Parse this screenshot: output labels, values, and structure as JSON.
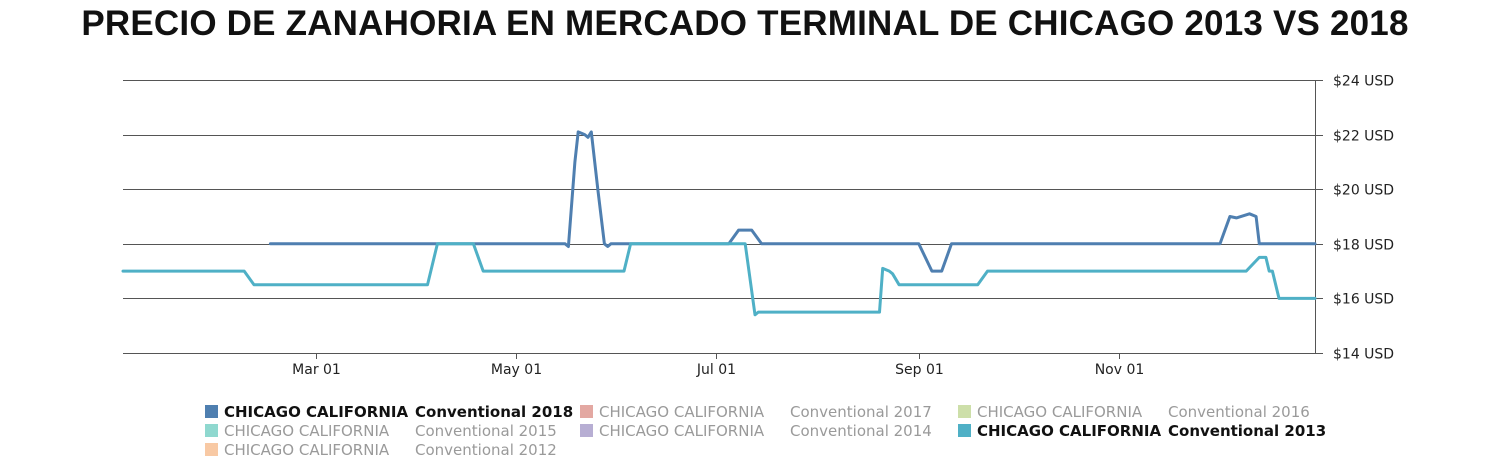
{
  "title": "PRECIO DE ZANAHORIA EN MERCADO TERMINAL DE CHICAGO 2013 VS 2018",
  "chart_data": {
    "type": "line",
    "title": "PRECIO DE ZANAHORIA EN MERCADO TERMINAL DE CHICAGO 2013 VS 2018",
    "xlabel": "",
    "ylabel": "",
    "x_unit": "day of year",
    "xlim": [
      1,
      365
    ],
    "ylim": [
      14,
      24
    ],
    "y_axis_position": "right",
    "grid": "horizontal",
    "x_tick_labels": [
      {
        "label": "Mar 01",
        "day": 60
      },
      {
        "label": "May 01",
        "day": 121
      },
      {
        "label": "Jul 01",
        "day": 182
      },
      {
        "label": "Sep 01",
        "day": 244
      },
      {
        "label": "Nov 01",
        "day": 305
      }
    ],
    "y_ticks": [
      {
        "label": "$24 USD",
        "value": 24
      },
      {
        "label": "$22 USD",
        "value": 22
      },
      {
        "label": "$20 USD",
        "value": 20
      },
      {
        "label": "$18 USD",
        "value": 18
      },
      {
        "label": "$16 USD",
        "value": 16
      },
      {
        "label": "$14 USD",
        "value": 14
      }
    ],
    "legend_position": "bottom",
    "legend": [
      {
        "name": "CHICAGO CALIFORNIA",
        "suffix": "Conventional 2018",
        "color": "#4f7fb0",
        "active": true
      },
      {
        "name": "CHICAGO CALIFORNIA",
        "suffix": "Conventional 2017",
        "color": "#e3a8a2",
        "active": false
      },
      {
        "name": "CHICAGO CALIFORNIA",
        "suffix": "Conventional 2016",
        "color": "#cddfa9",
        "active": false
      },
      {
        "name": "CHICAGO CALIFORNIA",
        "suffix": "Conventional 2015",
        "color": "#8fd8cf",
        "active": false
      },
      {
        "name": "CHICAGO CALIFORNIA",
        "suffix": "Conventional 2014",
        "color": "#b7aed3",
        "active": false
      },
      {
        "name": "CHICAGO CALIFORNIA",
        "suffix": "Conventional 2013",
        "color": "#4fb0c6",
        "active": true
      },
      {
        "name": "CHICAGO CALIFORNIA",
        "suffix": "Conventional 2012",
        "color": "#f8c9a4",
        "active": false
      }
    ],
    "series": [
      {
        "name": "CHICAGO CALIFORNIA Conventional 2018",
        "color": "#4f7fb0",
        "points": [
          [
            46,
            18.0
          ],
          [
            136,
            18.0
          ],
          [
            137,
            17.9
          ],
          [
            139,
            21.0
          ],
          [
            140,
            22.1
          ],
          [
            142,
            22.0
          ],
          [
            143,
            21.9
          ],
          [
            144,
            22.1
          ],
          [
            146,
            20.0
          ],
          [
            148,
            18.0
          ],
          [
            149,
            17.9
          ],
          [
            150,
            18.0
          ],
          [
            186,
            18.0
          ],
          [
            189,
            18.5
          ],
          [
            193,
            18.5
          ],
          [
            196,
            18.0
          ],
          [
            244,
            18.0
          ],
          [
            248,
            17.0
          ],
          [
            251,
            17.0
          ],
          [
            254,
            18.0
          ],
          [
            336,
            18.0
          ],
          [
            339,
            19.0
          ],
          [
            341,
            18.95
          ],
          [
            345,
            19.1
          ],
          [
            347,
            19.0
          ],
          [
            348,
            18.0
          ],
          [
            365,
            18.0
          ]
        ]
      },
      {
        "name": "CHICAGO CALIFORNIA Conventional 2013",
        "color": "#4fb0c6",
        "points": [
          [
            1,
            17.0
          ],
          [
            38,
            17.0
          ],
          [
            41,
            16.5
          ],
          [
            94,
            16.5
          ],
          [
            97,
            18.0
          ],
          [
            108,
            18.0
          ],
          [
            111,
            17.0
          ],
          [
            154,
            17.0
          ],
          [
            156,
            18.0
          ],
          [
            191,
            18.0
          ],
          [
            194,
            15.4
          ],
          [
            195,
            15.5
          ],
          [
            232,
            15.5
          ],
          [
            233,
            17.1
          ],
          [
            235,
            17.0
          ],
          [
            236,
            16.9
          ],
          [
            238,
            16.5
          ],
          [
            262,
            16.5
          ],
          [
            265,
            17.0
          ],
          [
            344,
            17.0
          ],
          [
            348,
            17.5
          ],
          [
            350,
            17.5
          ],
          [
            351,
            17.0
          ],
          [
            352,
            17.0
          ],
          [
            354,
            16.0
          ],
          [
            365,
            16.0
          ]
        ]
      }
    ]
  }
}
